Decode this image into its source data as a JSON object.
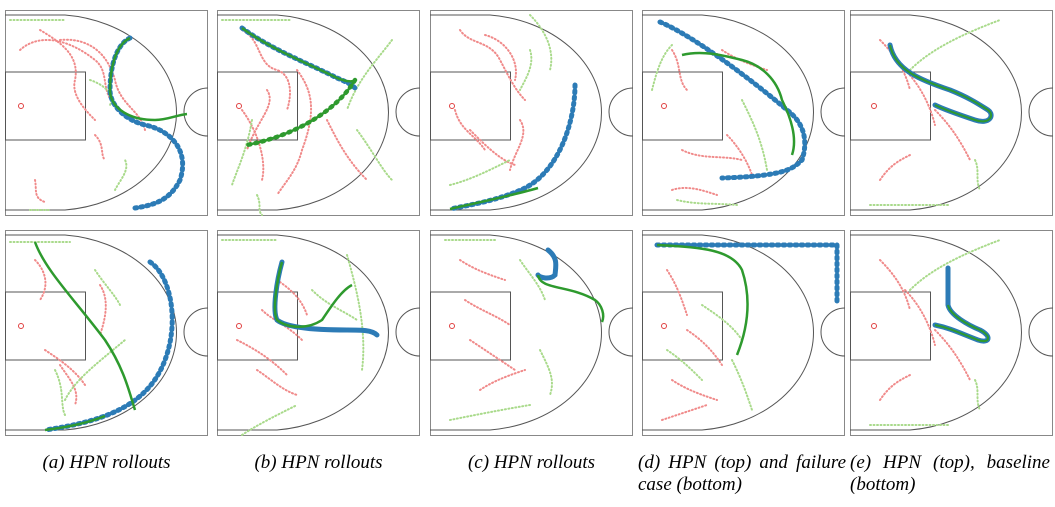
{
  "figure": {
    "colors": {
      "court_line": "#555555",
      "court_border": "#888888",
      "defense": "#f08a8a",
      "offense": "#a9da8b",
      "prediction": "#2e9a2e",
      "ground_truth": "#2c7bb6",
      "basket": "#e04040"
    },
    "panels": [
      {
        "id": "a",
        "caption": "(a) HPN rollouts"
      },
      {
        "id": "b",
        "caption": "(b) HPN rollouts"
      },
      {
        "id": "c",
        "caption": "(c) HPN rollouts"
      },
      {
        "id": "d",
        "caption": "(d) HPN (top) and failure case (bottom)"
      },
      {
        "id": "e",
        "caption": "(e) HPN (top), baseline (bottom)"
      }
    ]
  }
}
